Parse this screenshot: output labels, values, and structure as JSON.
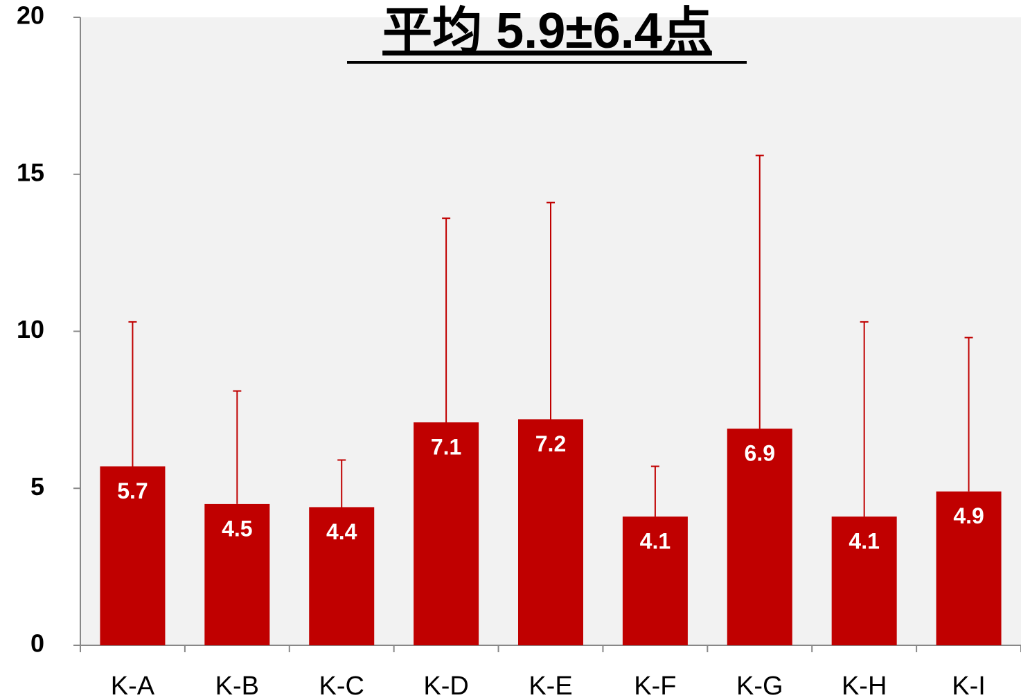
{
  "chart_data": {
    "type": "bar",
    "title": "平均 5.9±6.4点",
    "categories": [
      "K-A",
      "K-B",
      "K-C",
      "K-D",
      "K-E",
      "K-F",
      "K-G",
      "K-H",
      "K-I"
    ],
    "values": [
      5.7,
      4.5,
      4.4,
      7.1,
      7.2,
      4.1,
      6.9,
      4.1,
      4.9
    ],
    "errors": [
      4.6,
      3.6,
      1.5,
      6.5,
      6.9,
      1.6,
      8.7,
      6.2,
      4.9
    ],
    "color": "#c00000",
    "ylim": [
      0,
      20
    ],
    "yticks": [
      0,
      5,
      10,
      15,
      20
    ],
    "grid": false
  }
}
